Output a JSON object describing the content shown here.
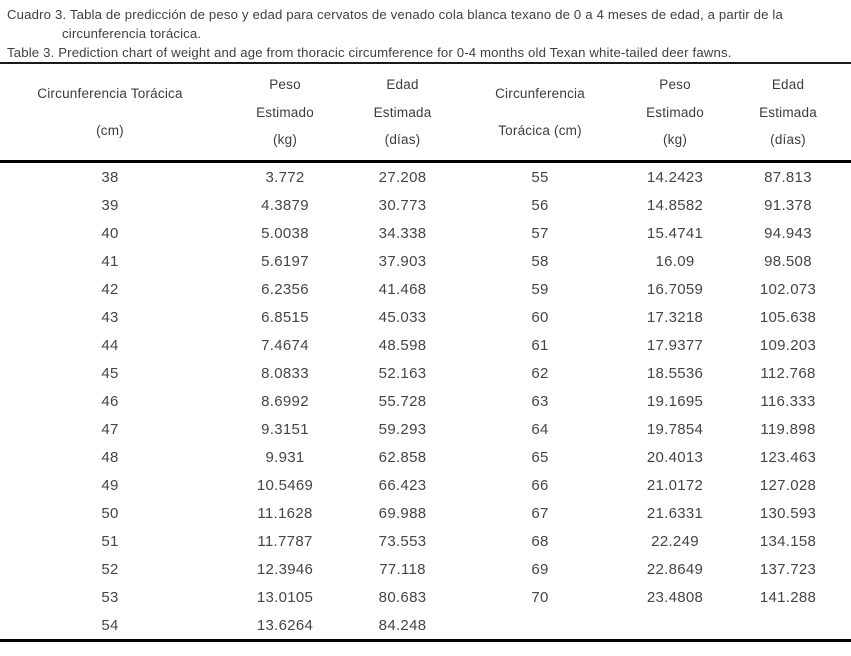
{
  "caption": {
    "es_line1": "Cuadro 3. Tabla de predicción de peso y edad para cervatos de venado cola blanca texano de 0 a 4 meses de edad, a partir de la",
    "es_line2": "circunferencia torácica.",
    "en": "Table 3. Prediction chart of weight and age from thoracic circumference for 0-4 months old Texan white-tailed deer fawns."
  },
  "colors": {
    "text": "#3f3f3f",
    "rule": "#000000",
    "background": "#ffffff"
  },
  "table": {
    "headers": [
      {
        "id": "circumference-left",
        "lines": [
          "Circunferencia Torácica",
          "(cm)"
        ]
      },
      {
        "id": "weight-left",
        "lines": [
          "Peso",
          "Estimado",
          "(kg)"
        ]
      },
      {
        "id": "age-left",
        "lines": [
          "Edad",
          "Estimada",
          "(días)"
        ]
      },
      {
        "id": "circumference-right",
        "lines": [
          "Circunferencia",
          "Torácica (cm)"
        ]
      },
      {
        "id": "weight-right",
        "lines": [
          "Peso",
          "Estimado",
          "(kg)"
        ]
      },
      {
        "id": "age-right",
        "lines": [
          "Edad",
          "Estimada",
          "(días)"
        ]
      }
    ],
    "rows": [
      [
        "38",
        "3.772",
        "27.208",
        "55",
        "14.2423",
        "87.813"
      ],
      [
        "39",
        "4.3879",
        "30.773",
        "56",
        "14.8582",
        "91.378"
      ],
      [
        "40",
        "5.0038",
        "34.338",
        "57",
        "15.4741",
        "94.943"
      ],
      [
        "41",
        "5.6197",
        "37.903",
        "58",
        "16.09",
        "98.508"
      ],
      [
        "42",
        "6.2356",
        "41.468",
        "59",
        "16.7059",
        "102.073"
      ],
      [
        "43",
        "6.8515",
        "45.033",
        "60",
        "17.3218",
        "105.638"
      ],
      [
        "44",
        "7.4674",
        "48.598",
        "61",
        "17.9377",
        "109.203"
      ],
      [
        "45",
        "8.0833",
        "52.163",
        "62",
        "18.5536",
        "112.768"
      ],
      [
        "46",
        "8.6992",
        "55.728",
        "63",
        "19.1695",
        "116.333"
      ],
      [
        "47",
        "9.3151",
        "59.293",
        "64",
        "19.7854",
        "119.898"
      ],
      [
        "48",
        "9.931",
        "62.858",
        "65",
        "20.4013",
        "123.463"
      ],
      [
        "49",
        "10.5469",
        "66.423",
        "66",
        "21.0172",
        "127.028"
      ],
      [
        "50",
        "11.1628",
        "69.988",
        "67",
        "21.6331",
        "130.593"
      ],
      [
        "51",
        "11.7787",
        "73.553",
        "68",
        "22.249",
        "134.158"
      ],
      [
        "52",
        "12.3946",
        "77.118",
        "69",
        "22.8649",
        "137.723"
      ],
      [
        "53",
        "13.0105",
        "80.683",
        "70",
        "23.4808",
        "141.288"
      ],
      [
        "54",
        "13.6264",
        "84.248",
        "",
        "",
        ""
      ]
    ]
  }
}
